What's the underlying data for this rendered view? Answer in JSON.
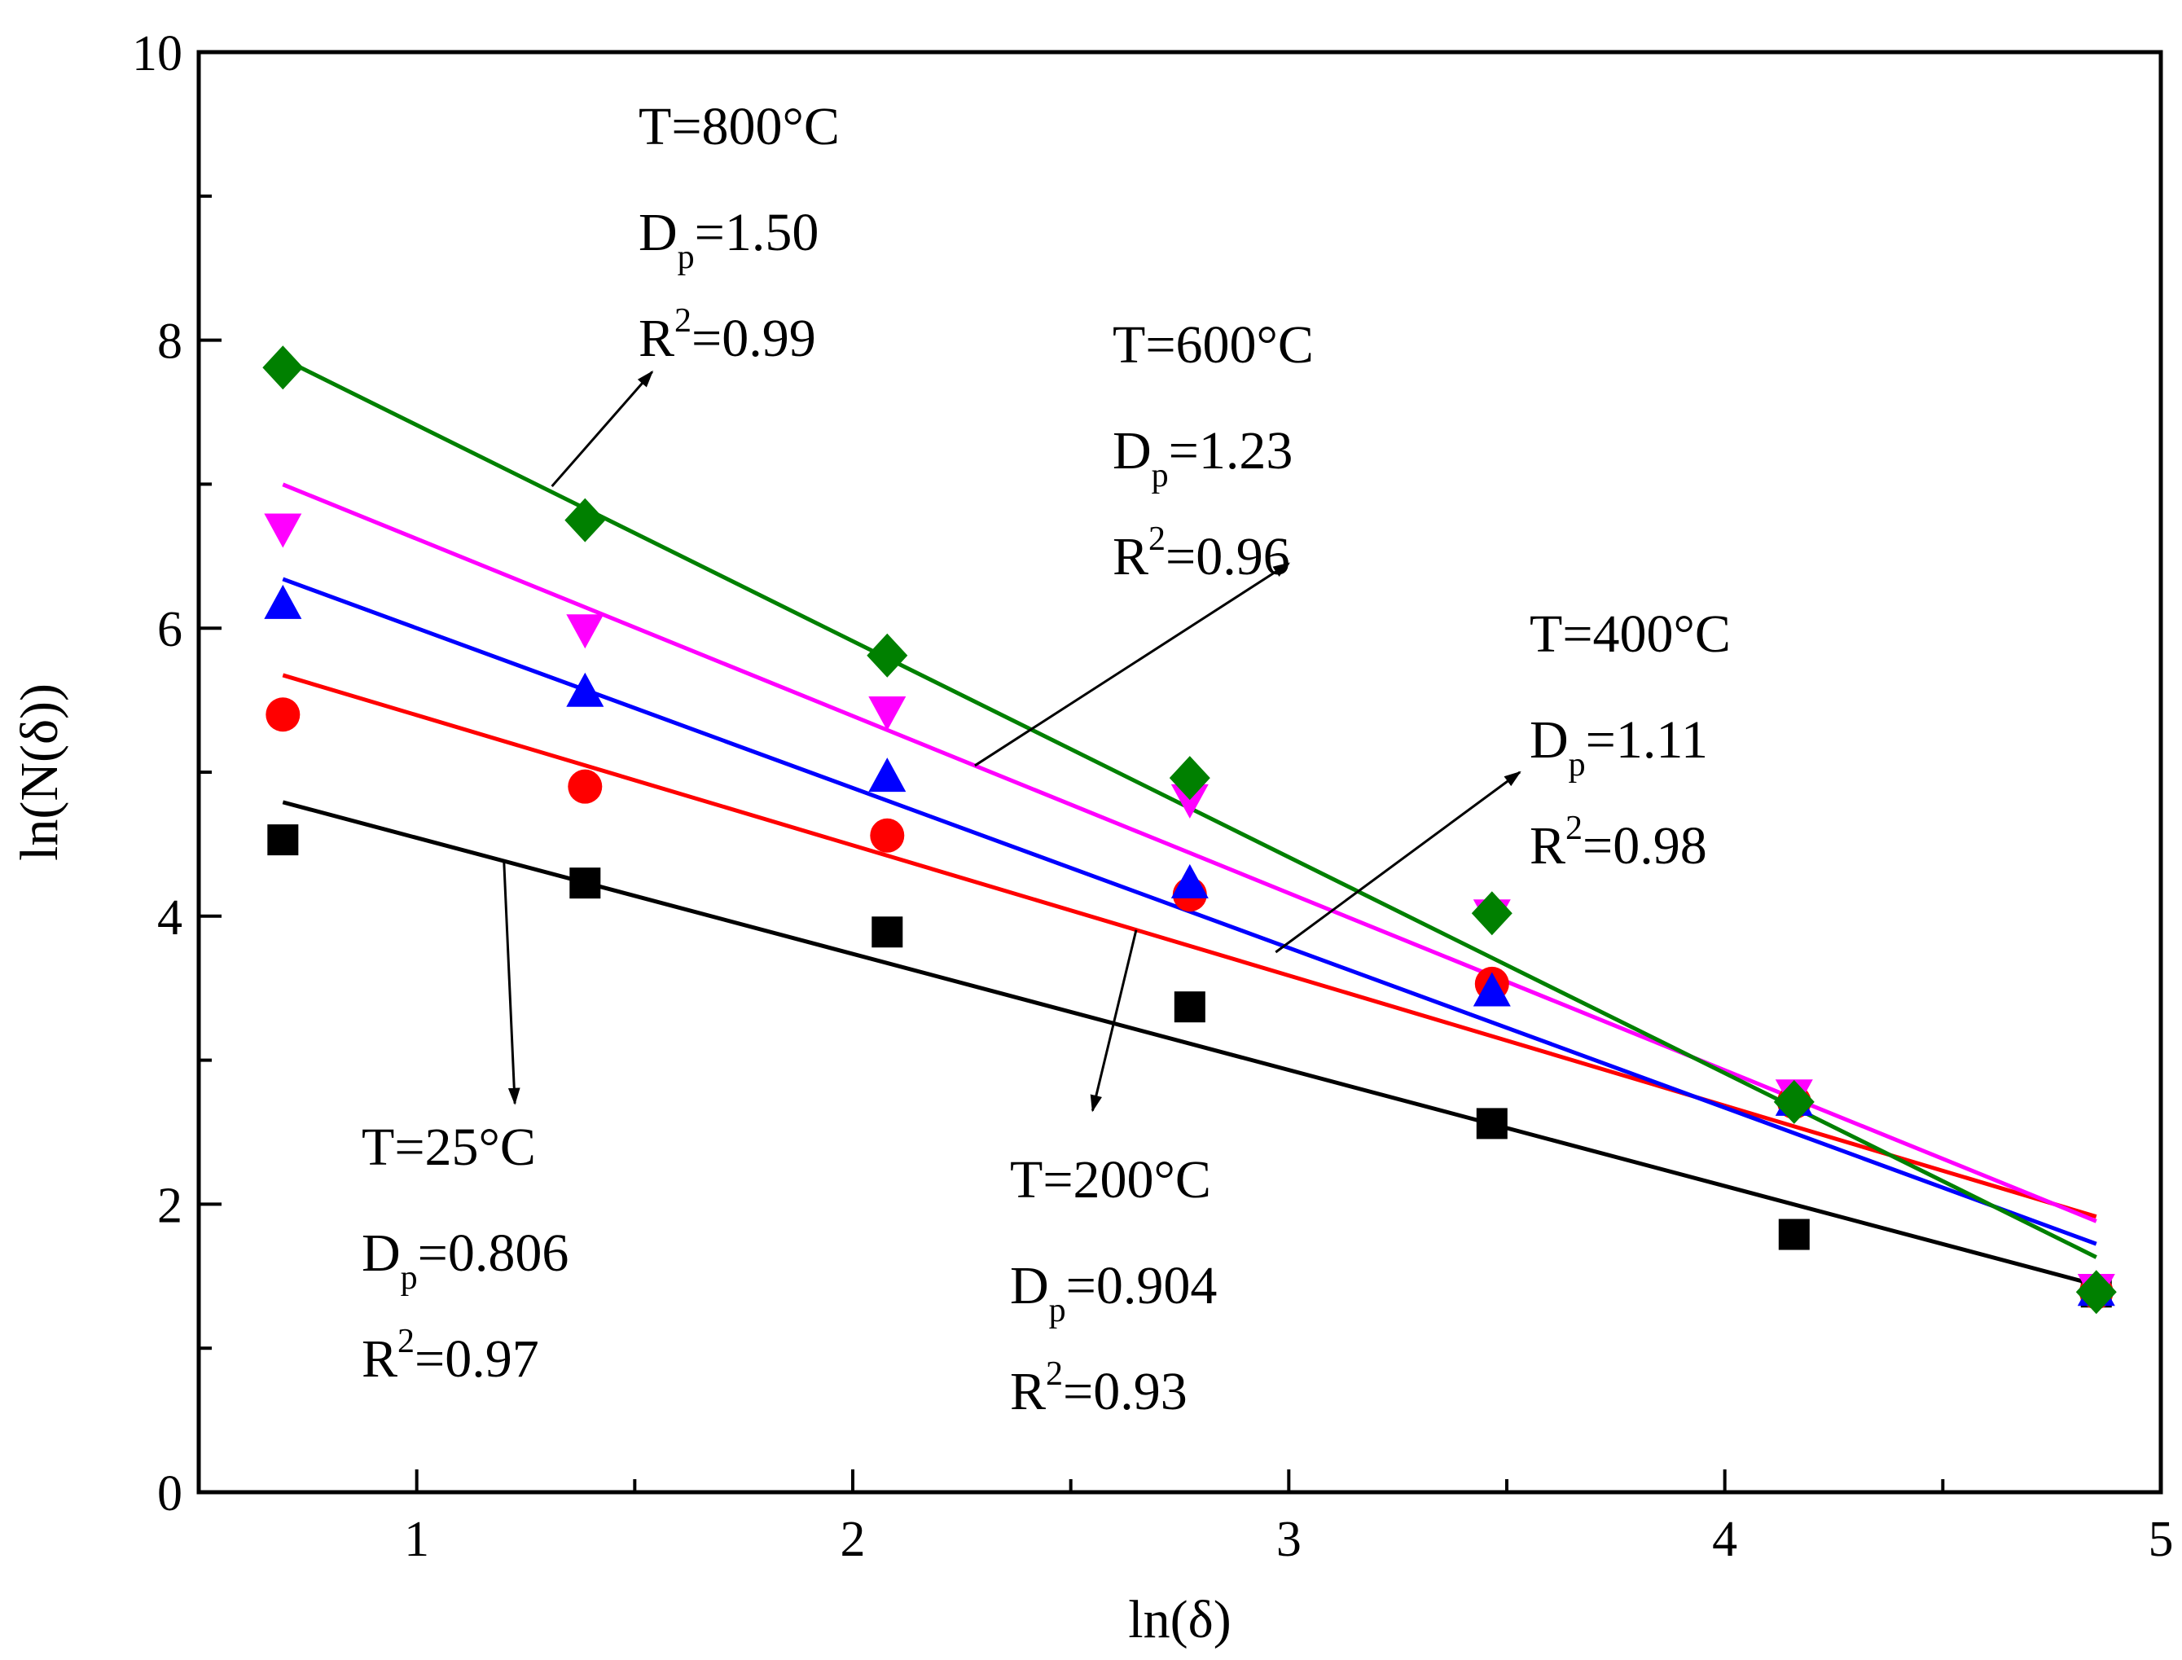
{
  "chart_data": {
    "type": "scatter",
    "title": "",
    "xlabel": "ln(δ)",
    "ylabel": "ln(N(δ))",
    "xlim": [
      0.5,
      5
    ],
    "ylim": [
      0,
      10
    ],
    "x_ticks": [
      1,
      2,
      3,
      4,
      5
    ],
    "y_ticks": [
      0,
      2,
      4,
      6,
      8,
      10
    ],
    "x_tick_labels": [
      "1",
      "2",
      "3",
      "4",
      "5"
    ],
    "y_tick_labels": [
      "0",
      "2",
      "4",
      "6",
      "8",
      "10"
    ],
    "x": [
      0.693,
      1.386,
      2.079,
      2.773,
      3.466,
      4.159,
      4.852
    ],
    "legend": "none",
    "series": [
      {
        "name": "T=25°C",
        "color": "#000000",
        "marker": "square",
        "values": [
          4.53,
          4.23,
          3.89,
          3.37,
          2.56,
          1.79,
          1.39
        ],
        "fit": {
          "slope": -0.806,
          "intercept": 5.35
        },
        "annotation": {
          "temp": "T=25°C",
          "d_label": "D",
          "d_sub": "p",
          "d_value": "=0.806",
          "r_label": "R",
          "r_sup": "2",
          "r_value": "=0.97"
        }
      },
      {
        "name": "T=200°C",
        "color": "#ff0000",
        "marker": "circle",
        "values": [
          5.4,
          4.9,
          4.56,
          4.15,
          3.53,
          2.71,
          1.39
        ],
        "fit": {
          "slope": -0.904,
          "intercept": 6.3
        },
        "annotation": {
          "temp": "T=200°C",
          "d_label": "D",
          "d_sub": "p",
          "d_value": "=0.904",
          "r_label": "R",
          "r_sup": "2",
          "r_value": "=0.93"
        }
      },
      {
        "name": "T=400°C",
        "color": "#0000ff",
        "marker": "triangle-up",
        "values": [
          6.16,
          5.55,
          4.96,
          4.22,
          3.47,
          2.71,
          1.39
        ],
        "fit": {
          "slope": -1.11,
          "intercept": 7.11
        },
        "annotation": {
          "temp": "T=400°C",
          "d_label": "D",
          "d_sub": "p",
          "d_value": "=1.11",
          "r_label": "R",
          "r_sup": "2",
          "r_value": "=0.98"
        }
      },
      {
        "name": "T=600°C",
        "color": "#ff00ff",
        "marker": "triangle-down",
        "values": [
          6.7,
          6.0,
          5.43,
          4.82,
          4.02,
          2.77,
          1.42
        ],
        "fit": {
          "slope": -1.23,
          "intercept": 7.85
        },
        "annotation": {
          "temp": "T=600°C",
          "d_label": "D",
          "d_sub": "p",
          "d_value": "=1.23",
          "r_label": "R",
          "r_sup": "2",
          "r_value": "=0.96"
        }
      },
      {
        "name": "T=800°C",
        "color": "#008000",
        "marker": "diamond",
        "values": [
          7.81,
          6.75,
          5.81,
          4.96,
          4.02,
          2.71,
          1.39
        ],
        "fit": {
          "slope": -1.5,
          "intercept": 8.91
        },
        "annotation": {
          "temp": "T=800°C",
          "d_label": "D",
          "d_sub": "p",
          "d_value": "=1.50",
          "r_label": "R",
          "r_sup": "2",
          "r_value": "=0.99"
        }
      }
    ]
  }
}
